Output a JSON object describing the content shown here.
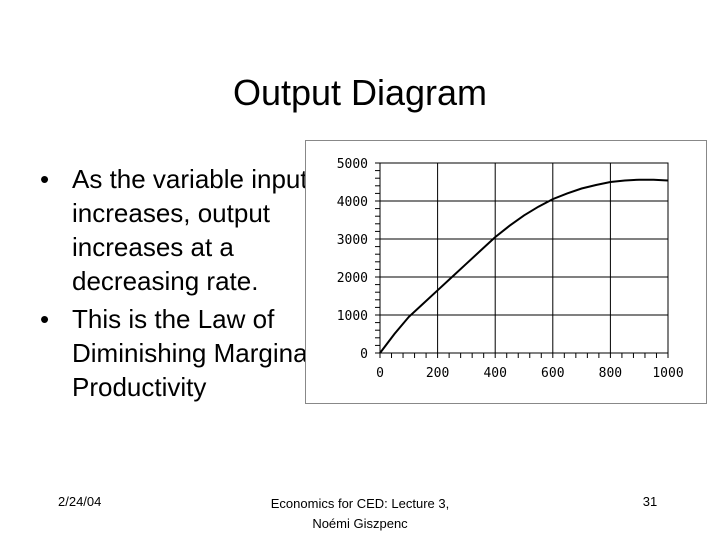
{
  "slide": {
    "title": "Output Diagram",
    "bullets": [
      "As the variable input increases, output increases at a decreasing rate.",
      "This is the Law of Diminishing Marginal Productivity"
    ],
    "bullet_glyph": "•"
  },
  "footer": {
    "date": "2/24/04",
    "course_line1": "Economics for CED: Lecture 3,",
    "course_line2": "Noémi Giszpenc",
    "page": "31"
  },
  "chart_data": {
    "type": "line",
    "title": "",
    "xlabel": "",
    "ylabel": "",
    "xlim": [
      0,
      1000
    ],
    "ylim": [
      0,
      5000
    ],
    "x_ticks": [
      0,
      200,
      400,
      600,
      800,
      1000
    ],
    "y_ticks": [
      0,
      1000,
      2000,
      3000,
      4000,
      5000
    ],
    "grid": true,
    "series": [
      {
        "x": [
          0,
          50,
          100,
          150,
          200,
          250,
          300,
          350,
          400,
          450,
          500,
          550,
          600,
          650,
          700,
          750,
          800,
          850,
          900,
          950,
          1000
        ],
        "y": [
          0,
          500,
          950,
          1300,
          1650,
          2000,
          2350,
          2700,
          3050,
          3350,
          3620,
          3850,
          4050,
          4200,
          4330,
          4420,
          4500,
          4540,
          4560,
          4560,
          4540
        ]
      }
    ],
    "line_color": "#000000"
  }
}
